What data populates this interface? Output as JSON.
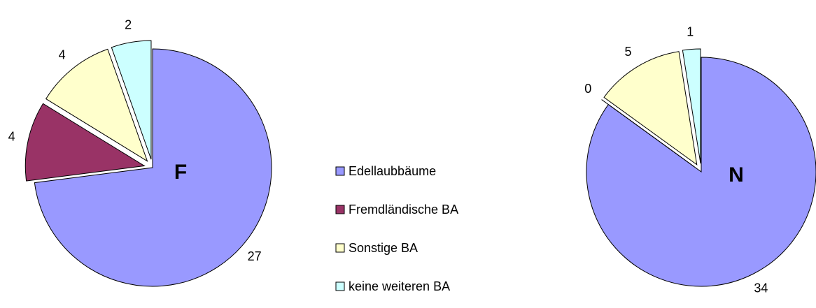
{
  "chart_data": [
    {
      "type": "pie",
      "title": "F",
      "categories": [
        "Edellaubbäume",
        "Fremdländische BA",
        "Sonstige BA",
        "keine weiteren BA"
      ],
      "values": [
        27,
        4,
        4,
        2
      ],
      "colors": [
        "#9999ff",
        "#993366",
        "#ffffcc",
        "#ccffff"
      ]
    },
    {
      "type": "pie",
      "title": "N",
      "categories": [
        "Edellaubbäume",
        "Fremdländische BA",
        "Sonstige BA",
        "keine weiteren BA"
      ],
      "values": [
        34,
        0,
        5,
        1
      ],
      "colors": [
        "#9999ff",
        "#993366",
        "#ffffcc",
        "#ccffff"
      ]
    }
  ]
}
